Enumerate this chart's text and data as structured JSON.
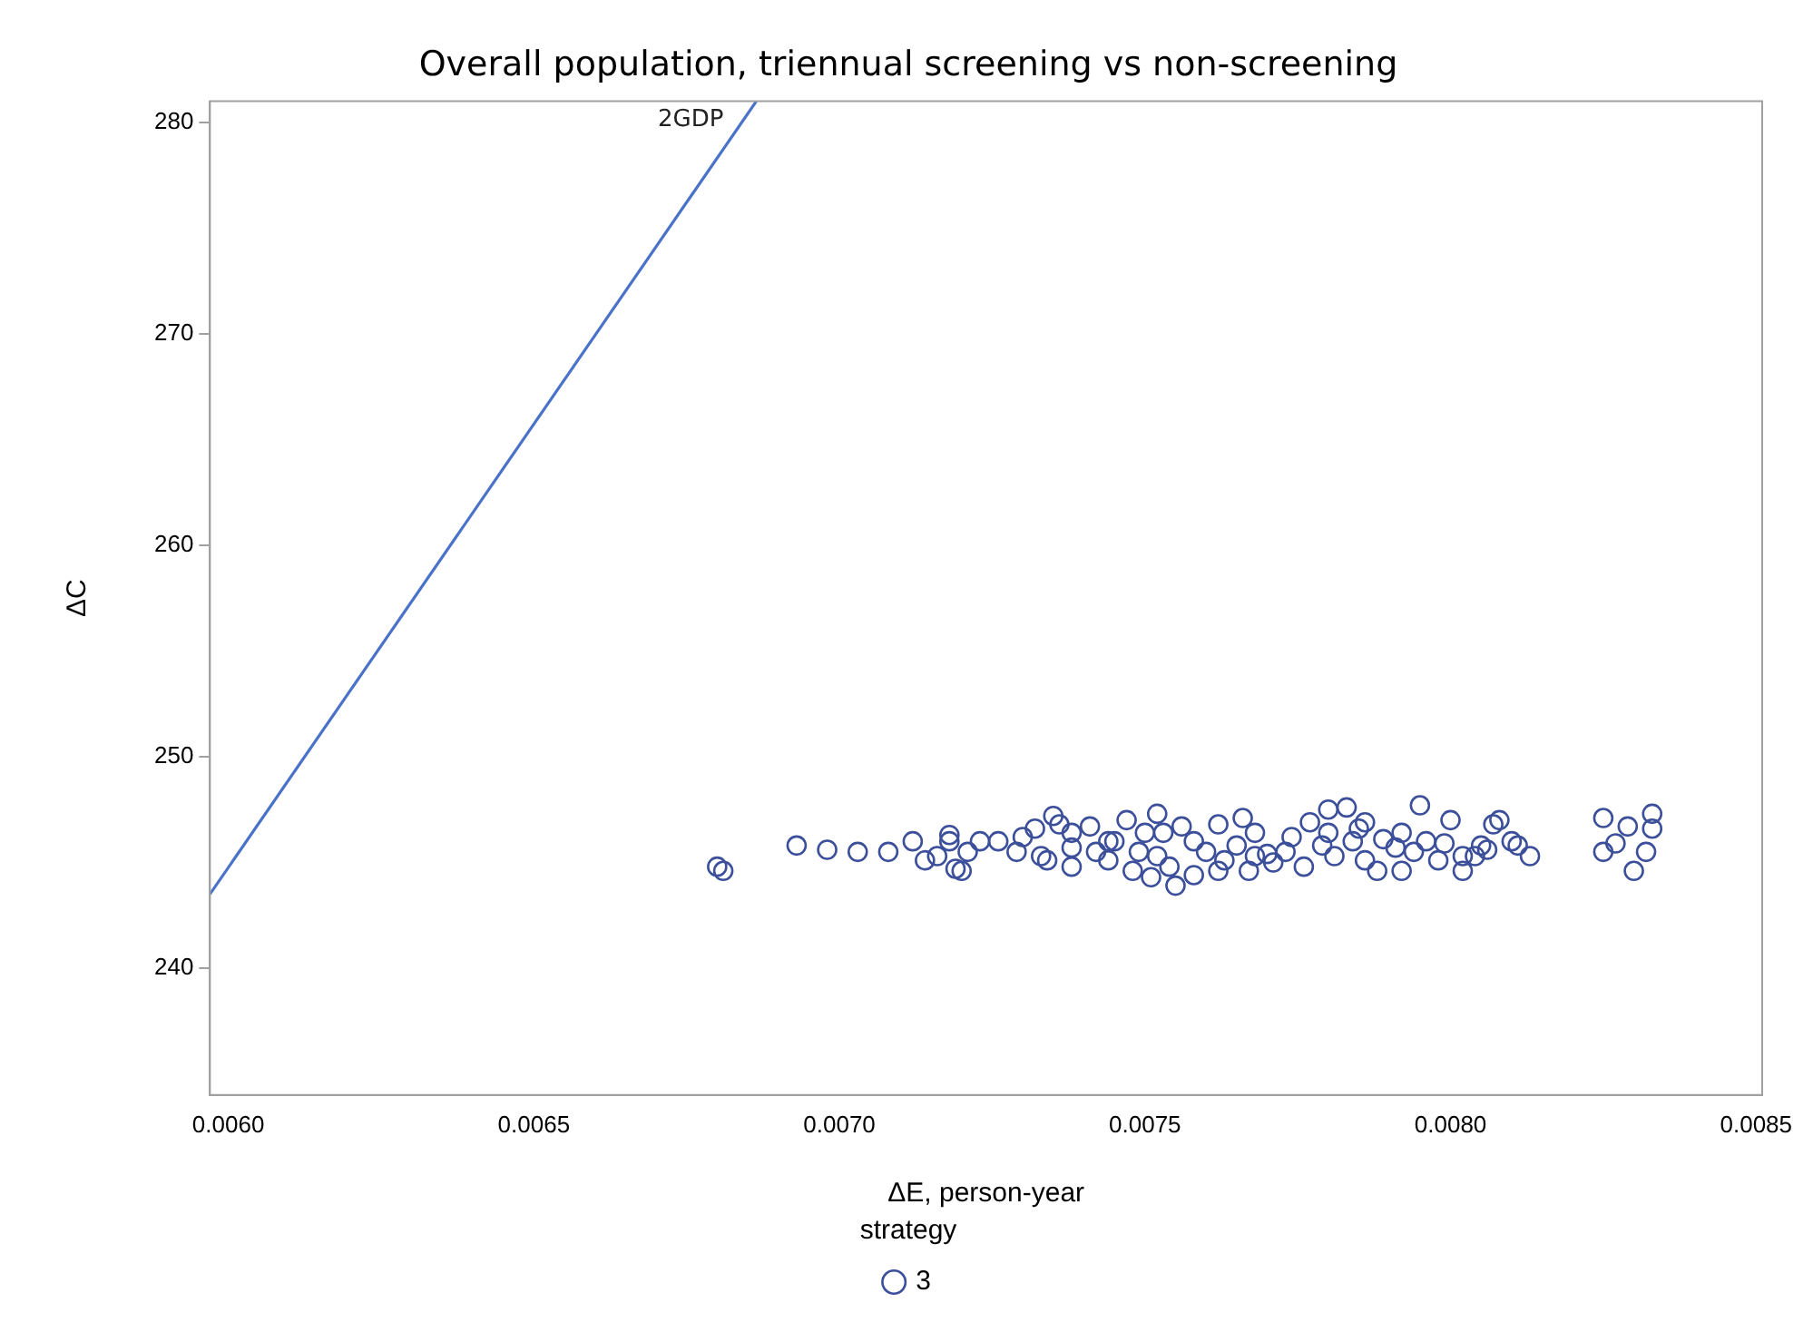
{
  "chart_data": {
    "type": "scatter",
    "title": "Overall population, triennual screening vs non-screening",
    "xlabel": "ΔE, person-year",
    "ylabel": "ΔC",
    "legend_title": "strategy",
    "legend": "bottom",
    "grid": false,
    "xlim": [
      0.00597,
      0.00851
    ],
    "ylim": [
      234,
      281
    ],
    "xticks": [
      {
        "value": 0.006,
        "label": "0.0060"
      },
      {
        "value": 0.0065,
        "label": "0.0065"
      },
      {
        "value": 0.007,
        "label": "0.0070"
      },
      {
        "value": 0.0075,
        "label": "0.0075"
      },
      {
        "value": 0.008,
        "label": "0.0080"
      },
      {
        "value": 0.0085,
        "label": "0.0085"
      }
    ],
    "yticks": [
      240,
      250,
      260,
      270,
      280
    ],
    "series": [
      {
        "name": "2GDP",
        "type": "line",
        "line_style": "solid",
        "marker": "none",
        "color": "#4a72c8",
        "x": [
          0.00597,
          0.006864
        ],
        "values": [
          243.5,
          281
        ]
      },
      {
        "name": "3",
        "marker": "circle",
        "color": "#3c4f9a",
        "x": [
          0.0068,
          0.00681,
          0.00693,
          0.00698,
          0.00703,
          0.00708,
          0.00712,
          0.00714,
          0.00716,
          0.00718,
          0.00719,
          0.00718,
          0.0072,
          0.00721,
          0.00723,
          0.00726,
          0.00729,
          0.0073,
          0.00732,
          0.00733,
          0.00734,
          0.00735,
          0.00736,
          0.00738,
          0.00738,
          0.00741,
          0.00742,
          0.00744,
          0.00745,
          0.00747,
          0.00748,
          0.00749,
          0.0075,
          0.00751,
          0.00752,
          0.00752,
          0.00754,
          0.00755,
          0.00756,
          0.00758,
          0.00758,
          0.0076,
          0.00762,
          0.00763,
          0.00765,
          0.00766,
          0.00767,
          0.00768,
          0.0077,
          0.00771,
          0.00773,
          0.00774,
          0.00776,
          0.00777,
          0.00779,
          0.0078,
          0.00781,
          0.00783,
          0.00784,
          0.00785,
          0.00786,
          0.00788,
          0.00789,
          0.00791,
          0.00792,
          0.00794,
          0.00795,
          0.00796,
          0.00798,
          0.00799,
          0.008,
          0.00802,
          0.00804,
          0.00805,
          0.00806,
          0.00807,
          0.00808,
          0.0081,
          0.00811,
          0.00813,
          0.00825,
          0.00827,
          0.00829,
          0.0083,
          0.00832,
          0.00825,
          0.00833,
          0.00833,
          0.00753,
          0.00768,
          0.0078,
          0.00786,
          0.00744,
          0.00738,
          0.00762,
          0.00792,
          0.00802
        ],
        "values": [
          244.8,
          244.6,
          245.8,
          245.6,
          245.5,
          245.5,
          246.0,
          245.1,
          245.3,
          246.0,
          244.7,
          246.3,
          244.6,
          245.5,
          246.0,
          246.0,
          245.5,
          246.2,
          246.6,
          245.3,
          245.1,
          247.2,
          246.8,
          245.7,
          244.8,
          246.7,
          245.5,
          245.1,
          246.0,
          247.0,
          244.6,
          245.5,
          246.4,
          244.3,
          247.3,
          245.3,
          244.8,
          243.9,
          246.7,
          246.0,
          244.4,
          245.5,
          246.8,
          245.1,
          245.8,
          247.1,
          244.6,
          246.4,
          245.4,
          245.0,
          245.5,
          246.2,
          244.8,
          246.9,
          245.8,
          247.5,
          245.3,
          247.6,
          246.0,
          246.6,
          245.1,
          244.6,
          246.1,
          245.7,
          246.4,
          245.5,
          247.7,
          246.0,
          245.1,
          245.9,
          247.0,
          245.3,
          245.3,
          245.8,
          245.6,
          246.8,
          247.0,
          246.0,
          245.8,
          245.3,
          245.5,
          245.9,
          246.7,
          244.6,
          245.5,
          247.1,
          246.6,
          247.3,
          246.4,
          245.3,
          246.4,
          246.9,
          246.0,
          246.4,
          244.6,
          244.6,
          244.6
        ]
      }
    ]
  }
}
